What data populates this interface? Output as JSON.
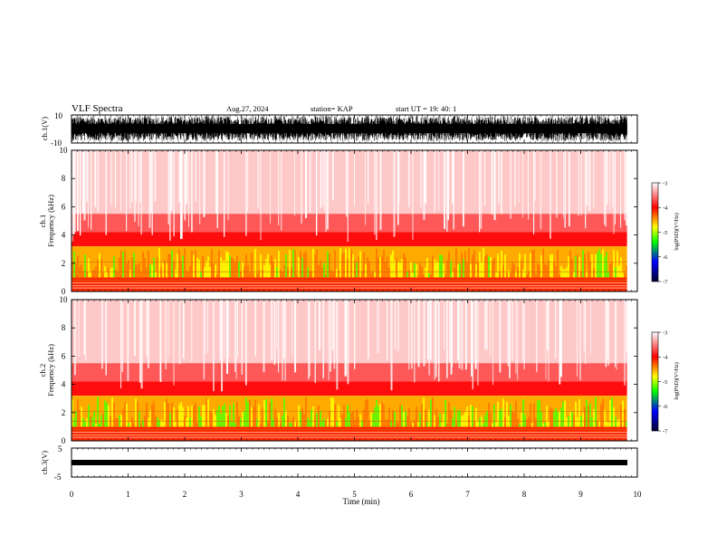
{
  "header": {
    "title": "VLF Spectra",
    "date": "Aug.27, 2024",
    "station": "station= KAP",
    "start": "start  UT  =    19: 40: 1"
  },
  "chart_data": [
    {
      "type": "line",
      "name": "ch1-waveform",
      "ylabel": "ch.1(V)",
      "ylim": [
        -10,
        10
      ],
      "yticks": [
        "10",
        "-10"
      ],
      "xlim": [
        0,
        10
      ],
      "data_extent_min": [
        0,
        9.82
      ]
    },
    {
      "type": "heatmap",
      "name": "ch1-spectrogram",
      "ylabel": "ch.1\nFrequency (kHz)",
      "ylim": [
        0,
        10
      ],
      "yticks": [
        "0",
        "2",
        "4",
        "6",
        "8",
        "10"
      ],
      "xlim": [
        0,
        10
      ],
      "colorbar": {
        "label": "log(PSD)(V²/Hz)",
        "range": [
          -7,
          -3
        ],
        "ticks": [
          "-3",
          "-4",
          "-5",
          "-6",
          "-7"
        ]
      }
    },
    {
      "type": "heatmap",
      "name": "ch2-spectrogram",
      "ylabel": "ch.2\nFrequency (kHz)",
      "ylim": [
        0,
        10
      ],
      "yticks": [
        "0",
        "2",
        "4",
        "6",
        "8",
        "10"
      ],
      "xlim": [
        0,
        10
      ],
      "colorbar": {
        "label": "log(PSD)(V²/Hz)",
        "range": [
          -7,
          -3
        ],
        "ticks": [
          "-3",
          "-4",
          "-5",
          "-6",
          "-7"
        ]
      }
    },
    {
      "type": "line",
      "name": "ch3-waveform",
      "ylabel": "ch.3(V)",
      "ylim": [
        -5,
        5
      ],
      "yticks": [
        "5",
        "0",
        "-5"
      ],
      "xlim": [
        0,
        10
      ],
      "approx_level": 0
    }
  ],
  "xaxis": {
    "label": "Time  (min)",
    "ticks": [
      "0",
      "1",
      "2",
      "3",
      "4",
      "5",
      "6",
      "7",
      "8",
      "9",
      "10"
    ]
  },
  "colors": {
    "high": "#ffffff",
    "mid_high": "#ff0000",
    "mid": "#ffff00",
    "mid_low": "#00ff00",
    "low": "#000080"
  }
}
